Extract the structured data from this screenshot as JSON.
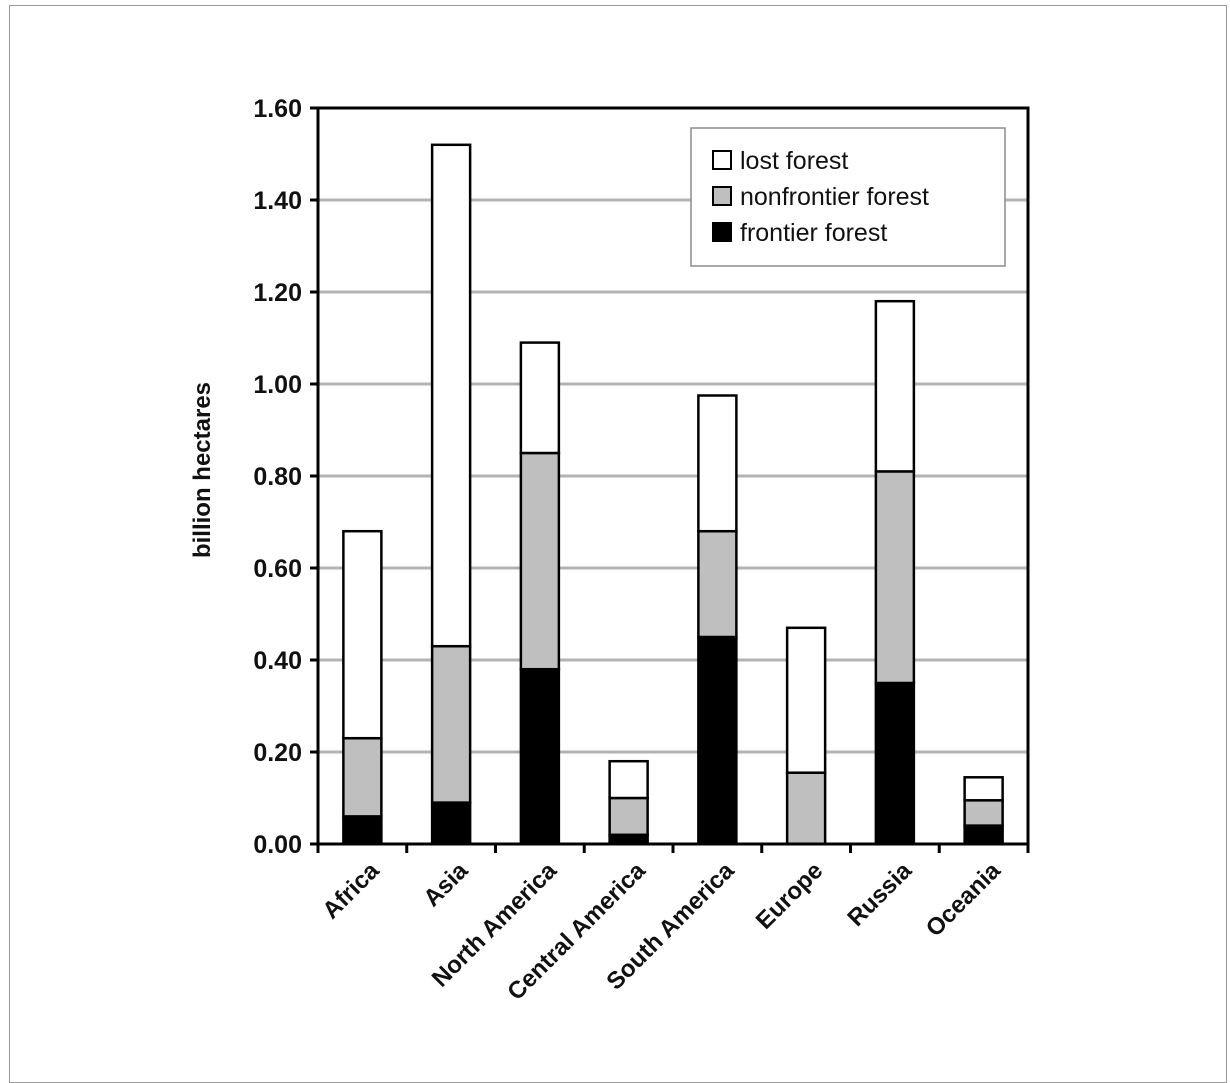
{
  "chart_data": {
    "type": "bar",
    "stacked": true,
    "categories": [
      "Africa",
      "Asia",
      "North America",
      "Central America",
      "South America",
      "Europe",
      "Russia",
      "Oceania"
    ],
    "series": [
      {
        "name": "frontier forest",
        "color": "#000000",
        "values": [
          0.06,
          0.09,
          0.38,
          0.02,
          0.45,
          0.0,
          0.35,
          0.04
        ]
      },
      {
        "name": "nonfrontier forest",
        "color": "#bfbfbf",
        "values": [
          0.17,
          0.34,
          0.47,
          0.08,
          0.23,
          0.155,
          0.46,
          0.055
        ]
      },
      {
        "name": "lost forest",
        "color": "#ffffff",
        "values": [
          0.45,
          1.09,
          0.24,
          0.08,
          0.295,
          0.315,
          0.37,
          0.05
        ]
      }
    ],
    "legend_order": [
      "lost forest",
      "nonfrontier forest",
      "frontier forest"
    ],
    "ylabel": "billion hectares",
    "xlabel": "",
    "title": "",
    "ylim": [
      0,
      1.6
    ],
    "yticks": [
      "0.00",
      "0.20",
      "0.40",
      "0.60",
      "0.80",
      "1.00",
      "1.20",
      "1.40",
      "1.60"
    ],
    "grid": true,
    "legend_position": "top-right"
  }
}
